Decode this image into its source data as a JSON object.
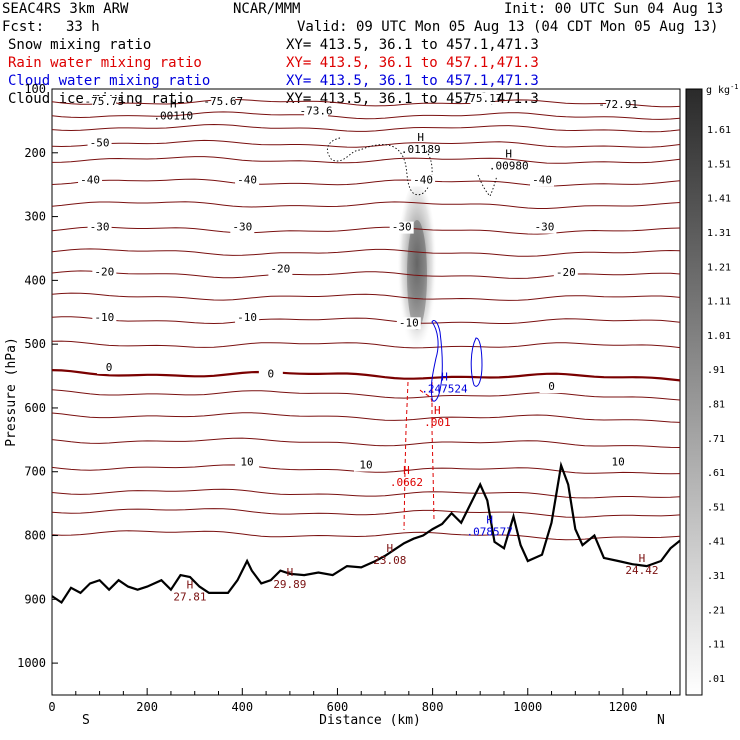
{
  "header": {
    "model": "SEAC4RS  3km ARW",
    "center": "NCAR/MMM",
    "init": "Init: 00 UTC Sun 04 Aug 13",
    "fcst_label": "Fcst:",
    "fcst_value": "33 h",
    "valid": "Valid: 09 UTC Mon 05 Aug 13 (04 CDT Mon 05 Aug 13)"
  },
  "legend": [
    {
      "name": "Snow mixing ratio",
      "xy": "XY= 413.5, 36.1 to 457.1,471.3",
      "color": "#000000"
    },
    {
      "name": "Rain water mixing ratio",
      "xy": "XY= 413.5, 36.1 to 457.1,471.3",
      "color": "#dd0000"
    },
    {
      "name": "Cloud water mixing ratio",
      "xy": "XY= 413.5, 36.1 to 457.1,471.3",
      "color": "#0000dd"
    },
    {
      "name": "Cloud ice mixing ratio",
      "xy": "XY= 413.5, 36.1 to 457.1,471.3",
      "color": "#000000"
    }
  ],
  "chart_data": {
    "type": "cross-section contour",
    "xlabel": "Distance (km)",
    "ylabel": "Pressure (hPa)",
    "xlim": [
      0,
      1320
    ],
    "ylim": [
      1050,
      100
    ],
    "x_ticks": [
      0,
      200,
      400,
      600,
      800,
      1000,
      1200
    ],
    "y_ticks": [
      100,
      200,
      300,
      400,
      500,
      600,
      700,
      800,
      900,
      1000
    ],
    "x_end_labels": {
      "left": "S",
      "right": "N"
    },
    "colorbar": {
      "unit": "g kg",
      "unit_sup": "-1",
      "values": [
        ".01",
        ".11",
        ".21",
        ".31",
        ".41",
        ".51",
        ".61",
        ".71",
        ".81",
        ".91",
        "1.01",
        "1.11",
        "1.21",
        "1.31",
        "1.41",
        "1.51",
        "1.61"
      ],
      "min_color": "#ffffff",
      "max_color": "#2a2a2a"
    },
    "isotherms": [
      {
        "label": "-75.75",
        "x": 110,
        "p": 125
      },
      {
        "label": "-75.67",
        "x": 360,
        "p": 125
      },
      {
        "label": "-73.6",
        "x": 555,
        "p": 140
      },
      {
        "label": "-75.17",
        "x": 905,
        "p": 120
      },
      {
        "label": "-72.91",
        "x": 1190,
        "p": 130
      },
      {
        "label": "-50",
        "x": 100,
        "p": 190
      },
      {
        "label": "-40",
        "x": 80,
        "p": 248
      },
      {
        "label": "-40",
        "x": 410,
        "p": 248
      },
      {
        "label": "-40",
        "x": 780,
        "p": 248
      },
      {
        "label": "-40",
        "x": 1030,
        "p": 248
      },
      {
        "label": "-30",
        "x": 100,
        "p": 322
      },
      {
        "label": "-30",
        "x": 400,
        "p": 322
      },
      {
        "label": "-30",
        "x": 735,
        "p": 322
      },
      {
        "label": "-30",
        "x": 1035,
        "p": 322
      },
      {
        "label": "-20",
        "x": 110,
        "p": 392
      },
      {
        "label": "-20",
        "x": 480,
        "p": 388
      },
      {
        "label": "-20",
        "x": 1080,
        "p": 393
      },
      {
        "label": "-10",
        "x": 110,
        "p": 464
      },
      {
        "label": "-10",
        "x": 410,
        "p": 464
      },
      {
        "label": "-10",
        "x": 750,
        "p": 472
      },
      {
        "label": "0",
        "x": 120,
        "p": 542
      },
      {
        "label": "0",
        "x": 460,
        "p": 552
      },
      {
        "label": "0",
        "x": 1050,
        "p": 572
      },
      {
        "label": "10",
        "x": 410,
        "p": 690
      },
      {
        "label": "10",
        "x": 660,
        "p": 695
      },
      {
        "label": "10",
        "x": 1190,
        "p": 690
      }
    ],
    "highs": [
      {
        "label": ".00110",
        "x": 255,
        "p": 148
      },
      {
        "label": ".01189",
        "x": 775,
        "p": 200
      },
      {
        "label": ".00980",
        "x": 960,
        "p": 226
      },
      {
        "label": ".247524",
        "x": 825,
        "p": 576,
        "color": "#0000dd"
      },
      {
        "label": ".001",
        "x": 810,
        "p": 628,
        "color": "#dd0000"
      },
      {
        "label": ".0662",
        "x": 745,
        "p": 722,
        "color": "#dd0000"
      },
      {
        "label": ".078577",
        "x": 920,
        "p": 800,
        "color": "#0000dd"
      },
      {
        "label": "23.08",
        "x": 710,
        "p": 845
      },
      {
        "label": "29.89",
        "x": 500,
        "p": 882
      },
      {
        "label": "27.81",
        "x": 290,
        "p": 902
      },
      {
        "label": "24.42",
        "x": 1240,
        "p": 860
      }
    ]
  }
}
